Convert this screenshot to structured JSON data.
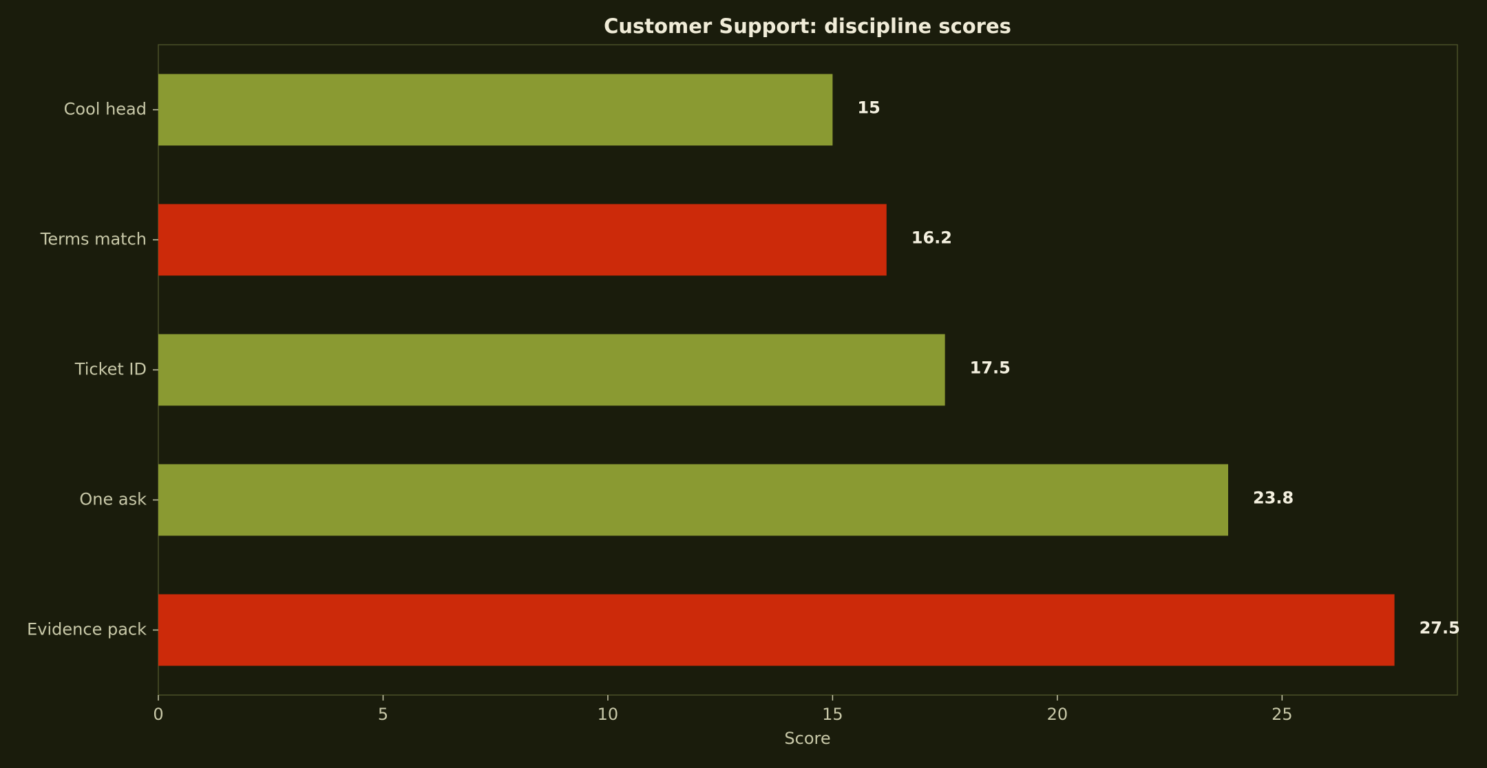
{
  "chart_data": {
    "type": "hbar",
    "title": "Customer Support: discipline scores",
    "xlabel": "Score",
    "categories": [
      "Cool head",
      "Terms match",
      "Ticket ID",
      "One ask",
      "Evidence pack"
    ],
    "values": [
      15,
      16.2,
      17.5,
      23.8,
      27.5
    ],
    "colors": [
      "#8a9a32",
      "#cc2a0a",
      "#8a9a32",
      "#8a9a32",
      "#cc2a0a"
    ],
    "xlim": [
      0,
      28.9
    ],
    "xticks": [
      0,
      5,
      10,
      15,
      20,
      25
    ]
  }
}
